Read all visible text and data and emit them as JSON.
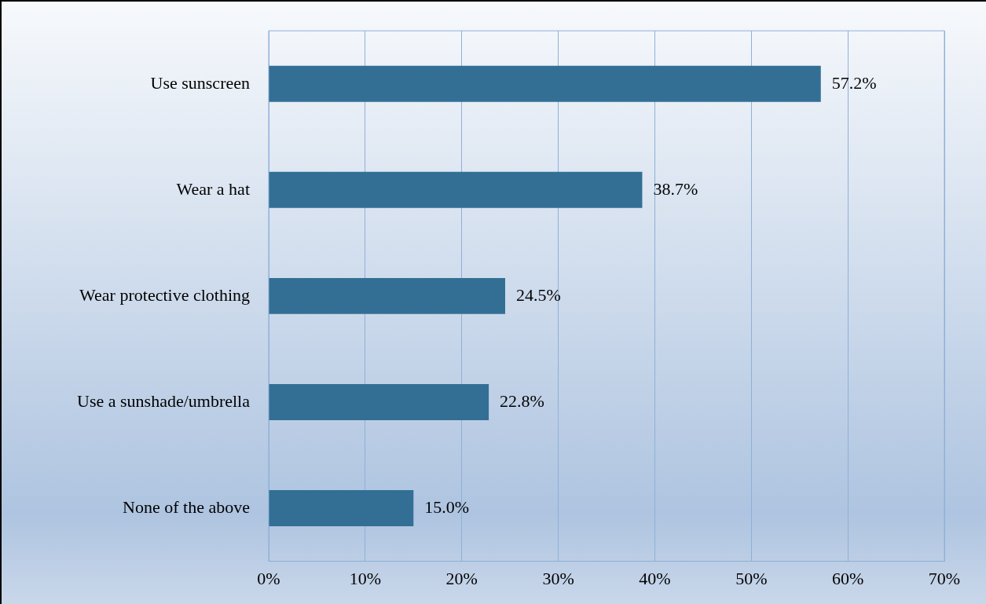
{
  "chart_data": {
    "type": "bar",
    "orientation": "horizontal",
    "categories": [
      "Use sunscreen",
      "Wear a hat",
      "Wear protective clothing",
      "Use a sunshade/umbrella",
      "None of the above"
    ],
    "values": [
      57.2,
      38.7,
      24.5,
      22.8,
      15.0
    ],
    "value_labels": [
      "57.2%",
      "38.7%",
      "24.5%",
      "22.8%",
      "15.0%"
    ],
    "color": "#336f95",
    "xlim": [
      0,
      70
    ],
    "xticks": [
      {
        "value": 0,
        "label": "0%"
      },
      {
        "value": 10,
        "label": "10%"
      },
      {
        "value": 20,
        "label": "20%"
      },
      {
        "value": 30,
        "label": "30%"
      },
      {
        "value": 40,
        "label": "40%"
      },
      {
        "value": 50,
        "label": "50%"
      },
      {
        "value": 60,
        "label": "60%"
      },
      {
        "value": 70,
        "label": "70%"
      }
    ],
    "grid": "x",
    "legend": false
  }
}
